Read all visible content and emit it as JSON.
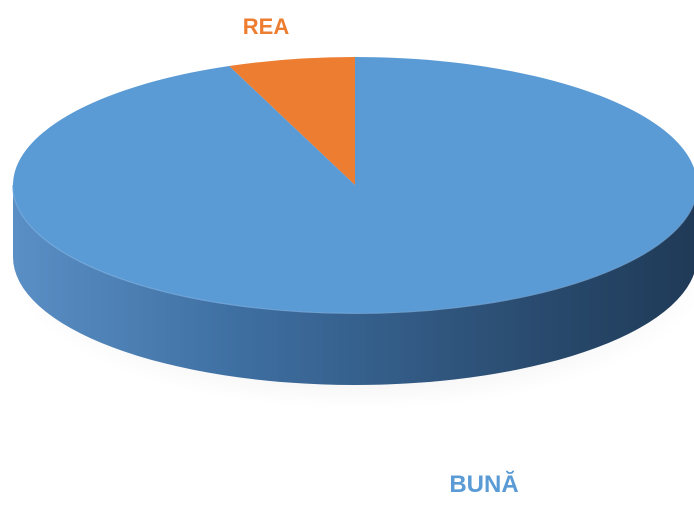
{
  "chart_data": {
    "type": "pie",
    "title": "",
    "style": "3d-tilted-exploded-none",
    "slices": [
      {
        "label": "BUNĂ",
        "value": 94,
        "color": "#5b9bd5"
      },
      {
        "label": "REA",
        "value": 6,
        "color": "#ed7d31"
      }
    ],
    "legend": "none"
  }
}
